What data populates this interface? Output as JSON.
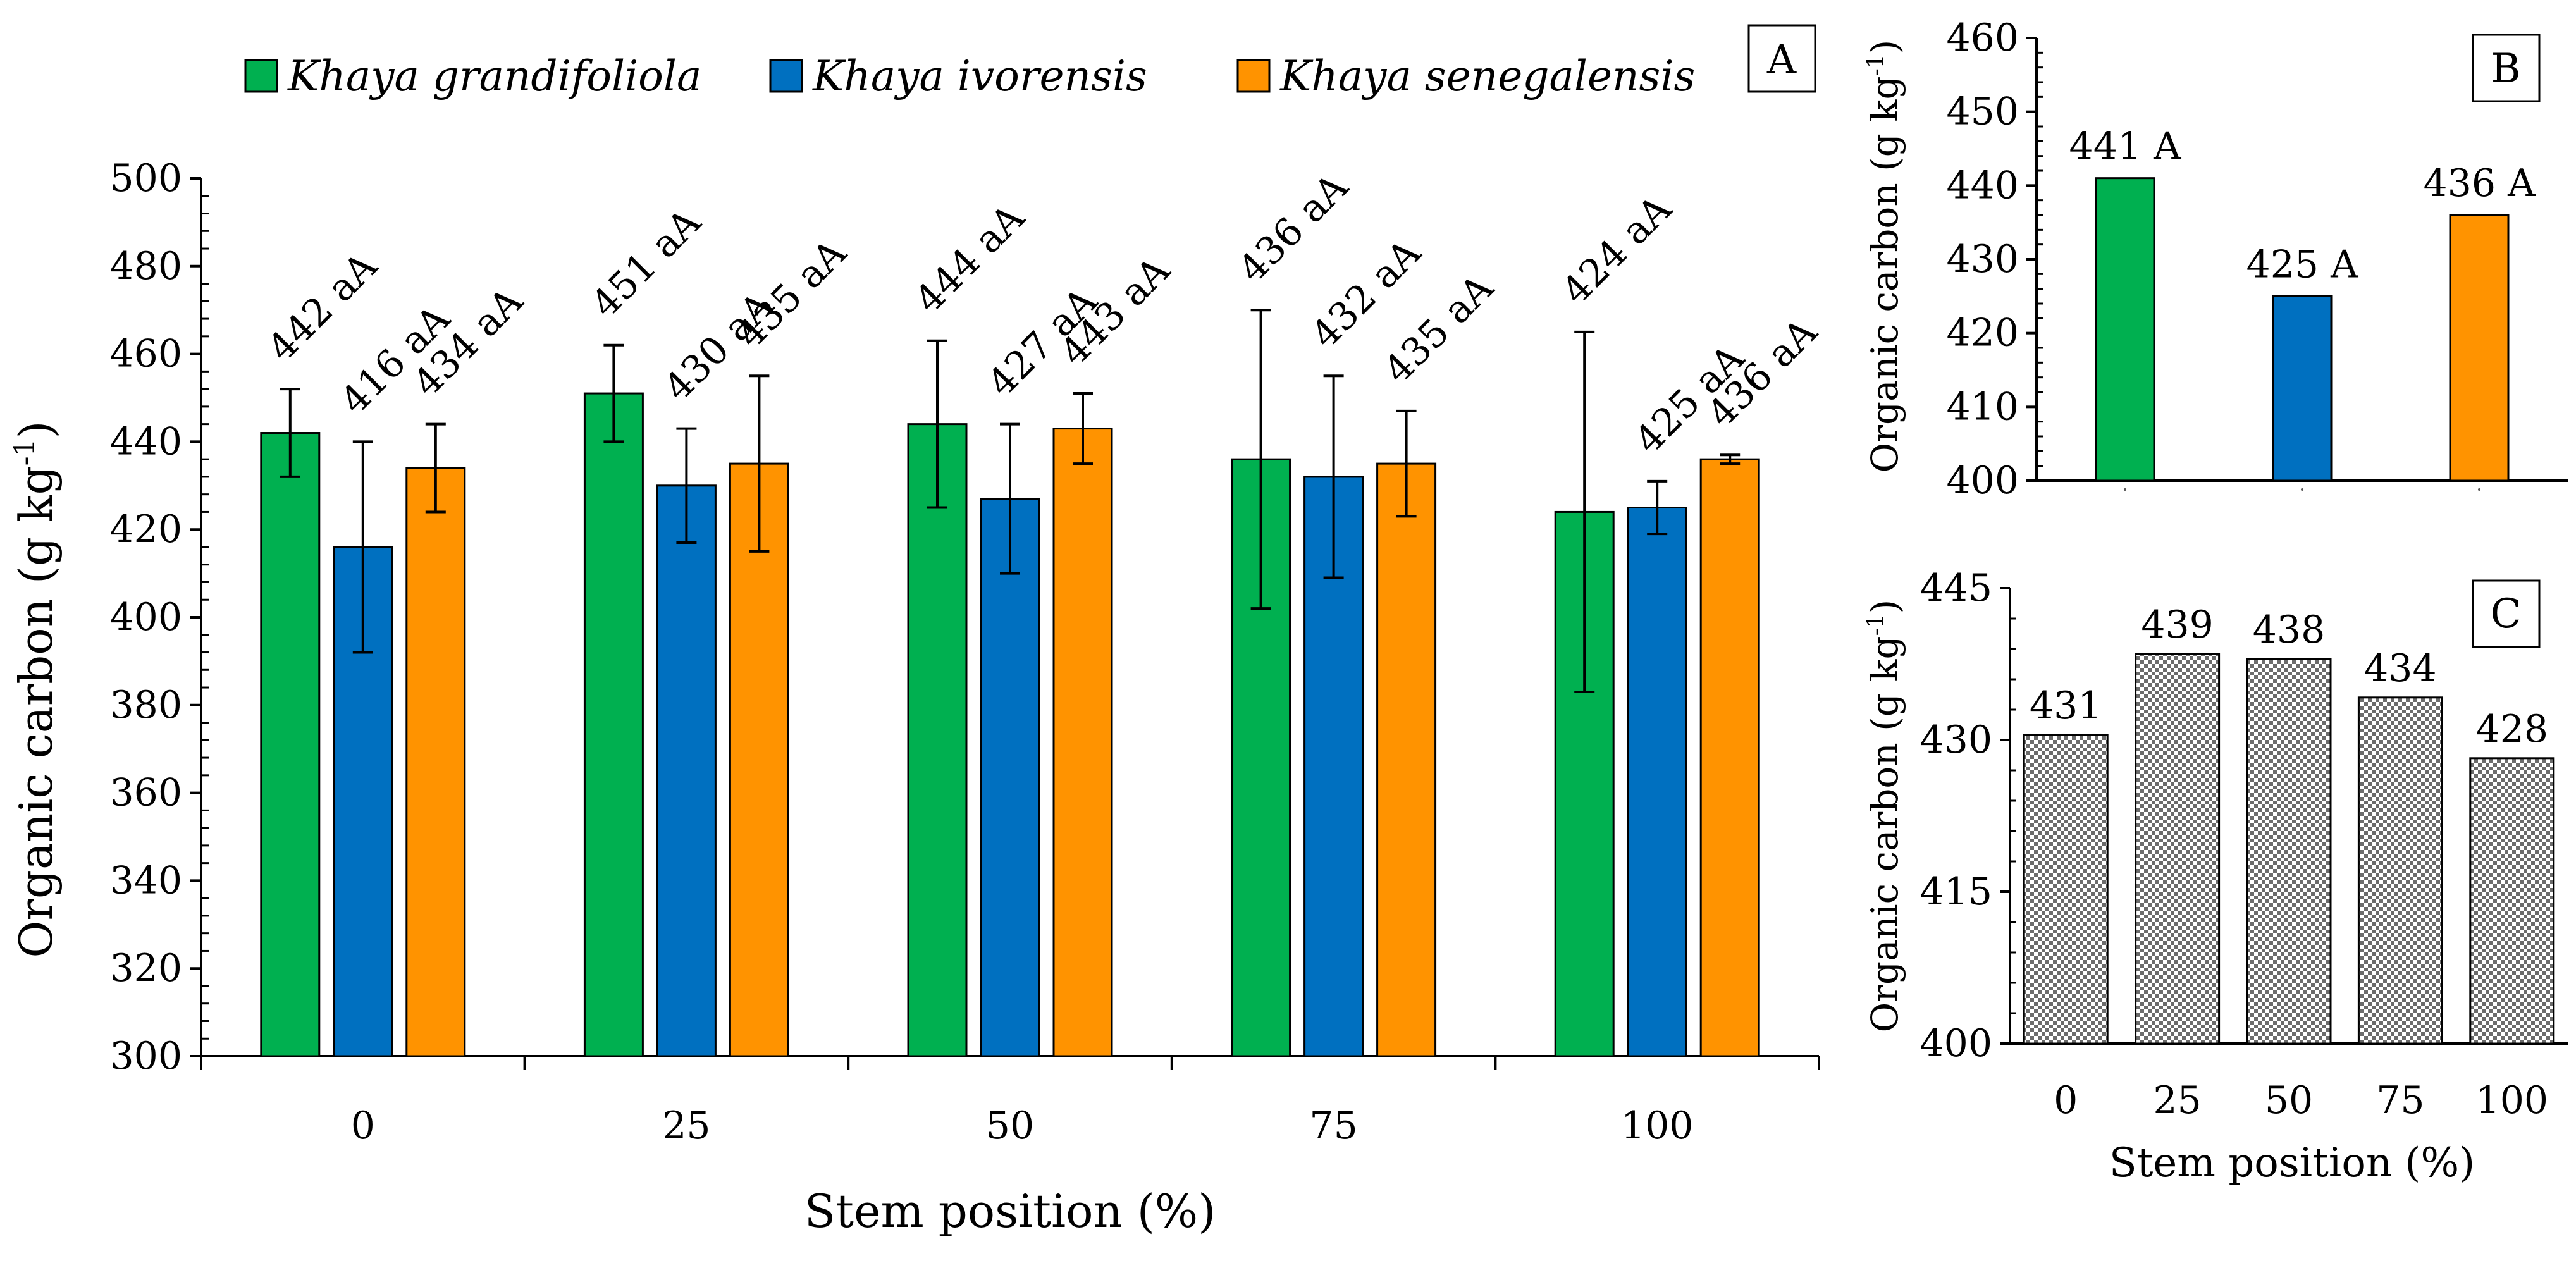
{
  "chart_data": [
    {
      "id": "A",
      "panel_label": "A",
      "type": "bar",
      "categories": [
        "0",
        "25",
        "50",
        "75",
        "100"
      ],
      "xlabel": "Stem position (%)",
      "ylabel": "Organic carbon (g kg",
      "ylabel_sup": "-1",
      "ylabel_close": ")",
      "ylim": [
        300,
        500
      ],
      "yticks": [
        "300",
        "320",
        "340",
        "360",
        "380",
        "400",
        "420",
        "440",
        "460",
        "480",
        "500"
      ],
      "legend_position": "top",
      "series": [
        {
          "name": "Khaya grandifoliola",
          "color": "#00B050",
          "values": [
            442,
            451,
            444,
            436,
            424
          ],
          "err": [
            10,
            11,
            19,
            34,
            41
          ],
          "labels": [
            "442 aA",
            "451 aA",
            "444 aA",
            "436 aA",
            "424 aA"
          ]
        },
        {
          "name": "Khaya ivorensis",
          "color": "#0070C0",
          "values": [
            416,
            430,
            427,
            432,
            425
          ],
          "err": [
            24,
            13,
            17,
            23,
            6
          ],
          "labels": [
            "416 aA",
            "430 aA",
            "427 aA",
            "432 aA",
            "425 aA"
          ]
        },
        {
          "name": "Khaya senegalensis",
          "color": "#FF9300",
          "values": [
            434,
            435,
            443,
            435,
            436
          ],
          "err": [
            10,
            20,
            8,
            12,
            1
          ],
          "labels": [
            "434 aA",
            "435 aA",
            "443 aA",
            "435 aA",
            "436 aA"
          ]
        }
      ]
    },
    {
      "id": "B",
      "panel_label": "B",
      "type": "bar",
      "ylabel": "Organic carbon (g kg",
      "ylabel_sup": "-1",
      "ylabel_close": ")",
      "ylim": [
        400,
        460
      ],
      "yticks": [
        "400",
        "410",
        "420",
        "430",
        "440",
        "450",
        "460"
      ],
      "values": [
        441,
        425,
        436
      ],
      "colors": [
        "#00B050",
        "#0070C0",
        "#FF9300"
      ],
      "labels": [
        "441 A",
        "425 A",
        "436 A"
      ]
    },
    {
      "id": "C",
      "panel_label": "C",
      "type": "bar",
      "categories": [
        "0",
        "25",
        "50",
        "75",
        "100"
      ],
      "xlabel": "Stem position (%)",
      "ylabel": "Organic carbon (g kg",
      "ylabel_sup": "-1",
      "ylabel_close": ")",
      "ylim": [
        400,
        445
      ],
      "yticks": [
        "400",
        "415",
        "430",
        "445"
      ],
      "values": [
        430.5,
        438.5,
        438,
        434.2,
        428.2
      ],
      "labels": [
        "431",
        "439",
        "438",
        "434",
        "428"
      ],
      "fill": "hatched"
    }
  ]
}
